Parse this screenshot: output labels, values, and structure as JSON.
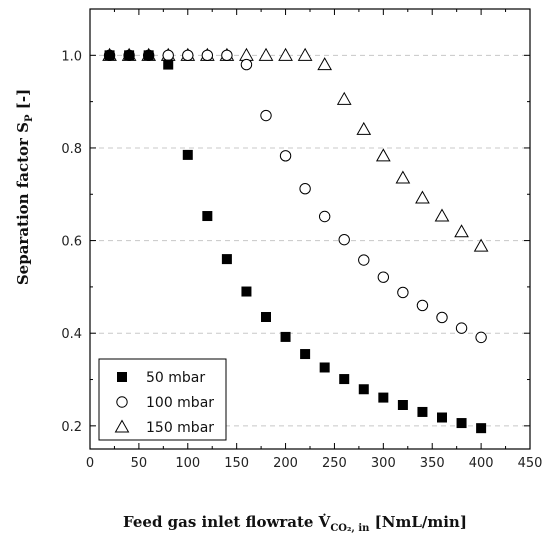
{
  "chart_data": {
    "type": "scatter",
    "xlabel": {
      "main": "Feed gas inlet flowrate V̇",
      "sub": "CO₂, in",
      "unit": "[NmL/min]"
    },
    "ylabel": {
      "main": "Separation factor S",
      "sub": "P",
      "unit": "[-]"
    },
    "xlim": [
      0,
      450
    ],
    "ylim": [
      0.15,
      1.1
    ],
    "xticks": [
      "0",
      "50",
      "100",
      "150",
      "200",
      "250",
      "300",
      "350",
      "400",
      "450"
    ],
    "yticks": [
      "0.2",
      "0.4",
      "0.6",
      "0.8",
      "1.0"
    ],
    "grid": "horizontal dashed",
    "legend_position": "bottom-left",
    "series": [
      {
        "name": "50 mbar",
        "marker": "filled-square",
        "color": "#000000",
        "x": [
          20,
          40,
          60,
          80,
          100,
          120,
          140,
          160,
          180,
          200,
          220,
          240,
          260,
          280,
          300,
          320,
          340,
          360,
          380,
          400
        ],
        "y": [
          1.0,
          1.0,
          1.0,
          0.98,
          0.785,
          0.653,
          0.56,
          0.49,
          0.435,
          0.392,
          0.355,
          0.326,
          0.301,
          0.279,
          0.261,
          0.245,
          0.23,
          0.218,
          0.206,
          0.195
        ]
      },
      {
        "name": "100 mbar",
        "marker": "open-circle",
        "color": "#000000",
        "x": [
          20,
          40,
          60,
          80,
          100,
          120,
          140,
          160,
          180,
          200,
          220,
          240,
          260,
          280,
          300,
          320,
          340,
          360,
          380,
          400
        ],
        "y": [
          1.0,
          1.0,
          1.0,
          1.0,
          1.0,
          1.0,
          1.0,
          0.98,
          0.87,
          0.783,
          0.712,
          0.652,
          0.602,
          0.558,
          0.521,
          0.488,
          0.46,
          0.434,
          0.411,
          0.391
        ]
      },
      {
        "name": "150 mbar",
        "marker": "open-triangle",
        "color": "#000000",
        "x": [
          20,
          40,
          60,
          80,
          100,
          120,
          140,
          160,
          180,
          200,
          220,
          240,
          260,
          280,
          300,
          320,
          340,
          360,
          380,
          400
        ],
        "y": [
          1.0,
          1.0,
          1.0,
          1.0,
          1.0,
          1.0,
          1.0,
          1.0,
          1.0,
          1.0,
          1.0,
          0.98,
          0.905,
          0.84,
          0.783,
          0.735,
          0.692,
          0.653,
          0.619,
          0.588
        ]
      }
    ]
  }
}
